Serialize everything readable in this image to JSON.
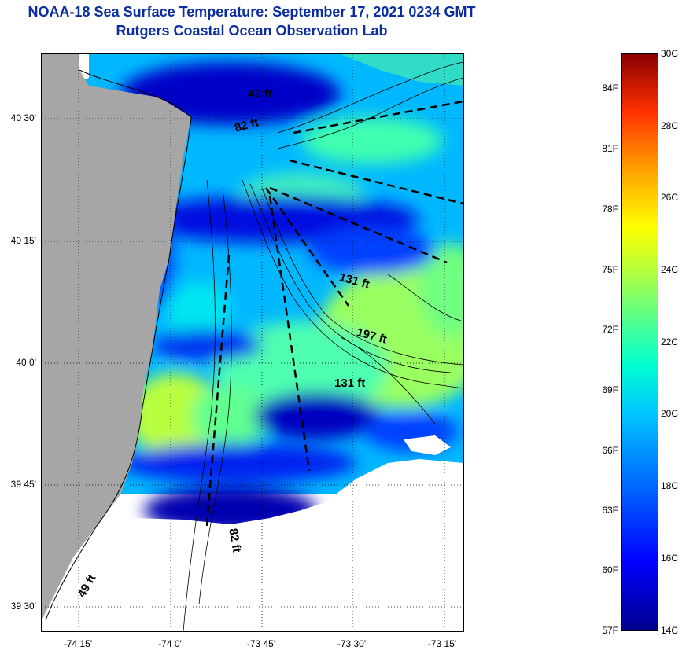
{
  "title": {
    "line1": "NOAA-18 Sea Surface Temperature:  September 17, 2021 0234 GMT",
    "line2": "Rutgers Coastal Ocean Observation Lab"
  },
  "axes": {
    "lat_labels": [
      "40 30'",
      "40 15'",
      "40 0'",
      "39 45'",
      "39 30'"
    ],
    "lon_labels": [
      "-74 15'",
      "-74 0'",
      "-73 45'",
      "-73 30'",
      "-73 15'"
    ]
  },
  "depth_labels": [
    "49 ft",
    "82 ft",
    "131 ft",
    "197 ft",
    "131 ft",
    "82 ft",
    "49 ft"
  ],
  "colorbar": {
    "fahrenheit": [
      "84F",
      "81F",
      "78F",
      "75F",
      "72F",
      "69F",
      "66F",
      "63F",
      "60F",
      "57F"
    ],
    "celsius": [
      "30C",
      "28C",
      "26C",
      "24C",
      "22C",
      "20C",
      "18C",
      "16C",
      "14C"
    ],
    "range_c": [
      14,
      30
    ]
  },
  "colors": {
    "title": "#0a2ea0",
    "land": "#a6a6a6",
    "cloud": "#ffffff",
    "cold": "#0000b8",
    "cool": "#0050ff",
    "mid": "#00a8ff",
    "cyan": "#00e6f0",
    "warm": "#60ff90",
    "yellowgreen": "#b8ff40"
  }
}
